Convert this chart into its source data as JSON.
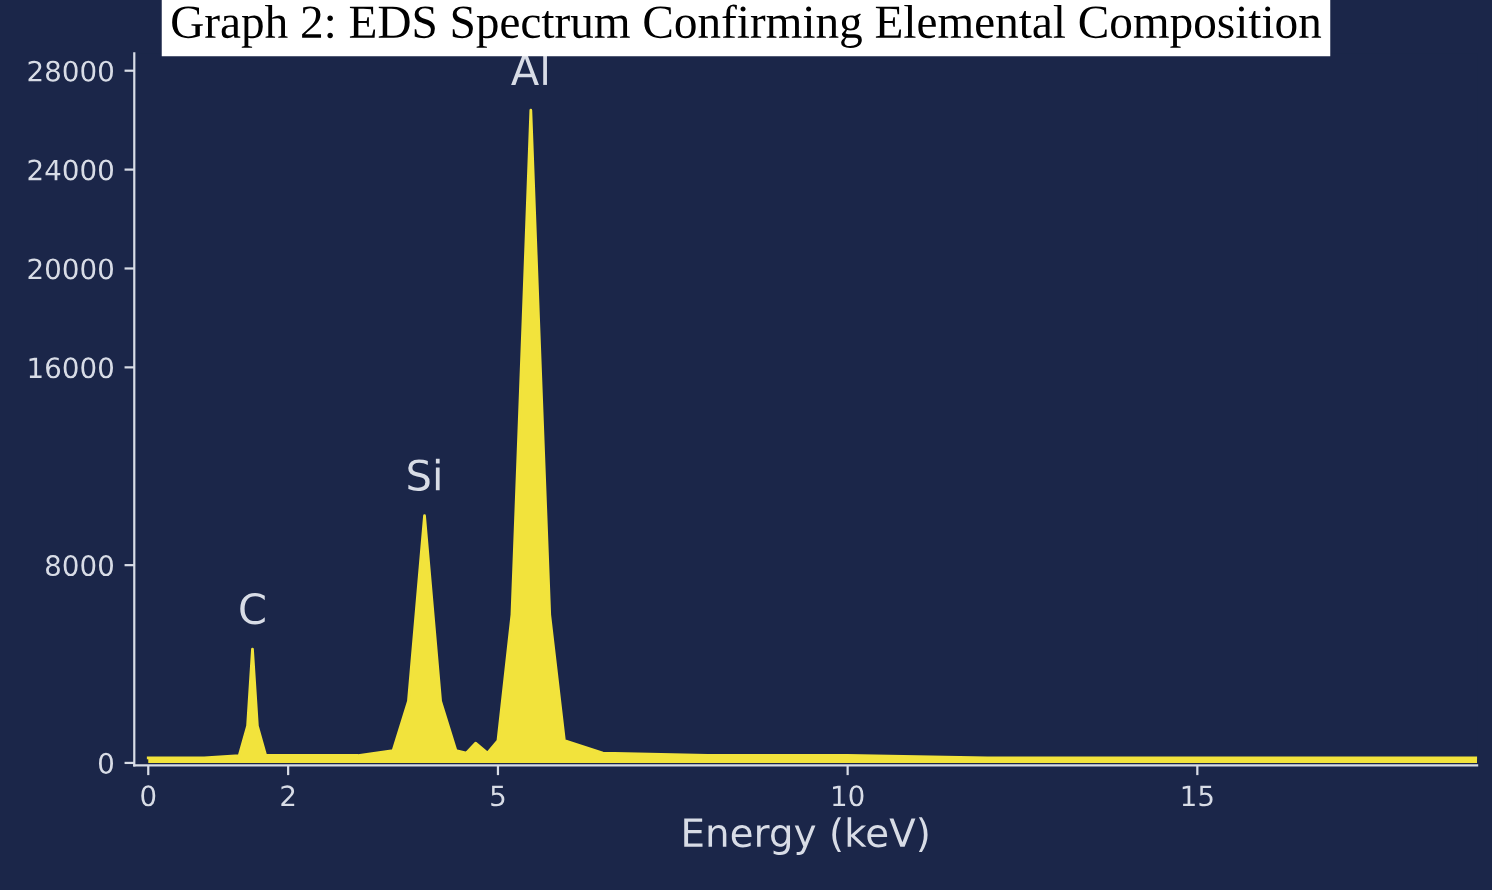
{
  "chart_data": {
    "type": "area",
    "title": "Graph 2: EDS Spectrum Confirming Elemental Composition",
    "xlabel": "Energy (keV)",
    "series": [
      {
        "color": "#f2e33c",
        "x": [
          0,
          0.8,
          1.3,
          1.42,
          1.49,
          1.56,
          1.68,
          2.3,
          3.0,
          3.5,
          3.72,
          3.95,
          4.18,
          4.4,
          4.55,
          4.68,
          4.85,
          5.0,
          5.2,
          5.36,
          5.47,
          5.58,
          5.74,
          5.95,
          6.5,
          8,
          10,
          12,
          15,
          17,
          19
        ],
        "values": [
          200,
          200,
          300,
          1500,
          4600,
          1500,
          300,
          300,
          300,
          500,
          2500,
          10000,
          2500,
          500,
          400,
          800,
          400,
          900,
          6000,
          18000,
          26400,
          18000,
          6000,
          900,
          400,
          300,
          300,
          200,
          200,
          200,
          200
        ]
      }
    ],
    "annotations": [
      {
        "text": "C",
        "x": 1.49,
        "y": 4600
      },
      {
        "text": "Si",
        "x": 3.95,
        "y": 10000
      },
      {
        "text": "Al",
        "x": 5.47,
        "y": 26400
      }
    ],
    "xlim": [
      -0.2,
      19
    ],
    "xticks": [
      0,
      2,
      5,
      10,
      15
    ],
    "ylim": [
      -100,
      28700
    ],
    "yticks": [
      0,
      8000,
      16000,
      20000,
      24000,
      28000
    ],
    "legend": false
  }
}
